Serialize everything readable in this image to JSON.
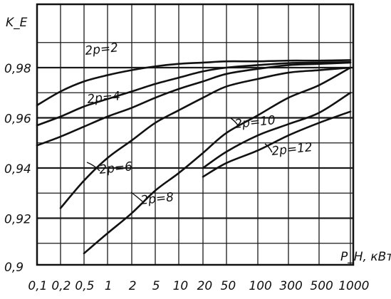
{
  "chart_data": {
    "type": "line",
    "ylabel": "K_E",
    "xlabel": "P_H, кВт",
    "ylim": [
      0.9,
      0.99
    ],
    "y_ticks": [
      "0,9",
      "0,92",
      "0,94",
      "0,96",
      "0,98"
    ],
    "y_tick_values": [
      0.9,
      0.92,
      0.94,
      0.96,
      0.98
    ],
    "x_ticks": [
      "0,1",
      "0,2",
      "0,5",
      "1",
      "2",
      "5",
      "10",
      "20",
      "50",
      "100",
      "300",
      "500",
      "1000"
    ],
    "grid": true,
    "series": [
      {
        "name": "2p=2",
        "x": [
          "0,1",
          "0,2",
          "0,5",
          "1",
          "2",
          "5",
          "10",
          "20",
          "50",
          "100",
          "300",
          "500",
          "1000"
        ],
        "values": [
          0.965,
          0.9705,
          0.9745,
          0.977,
          0.979,
          0.9805,
          0.9815,
          0.982,
          0.9825,
          0.9825,
          0.9828,
          0.9828,
          0.983
        ]
      },
      {
        "name": "2p=4",
        "x": [
          "0,1",
          "0,2",
          "0,5",
          "1",
          "2",
          "5",
          "10",
          "20",
          "50",
          "100",
          "300",
          "500",
          "1000"
        ],
        "values": [
          0.957,
          0.9605,
          0.9645,
          0.9675,
          0.9705,
          0.9735,
          0.976,
          0.9785,
          0.98,
          0.981,
          0.9818,
          0.982,
          0.9822
        ]
      },
      {
        "name": "2p=6",
        "x": [
          "0,1",
          "0,2",
          "0,5",
          "1",
          "2",
          "5",
          "10",
          "20",
          "50",
          "100",
          "300",
          "500",
          "1000"
        ],
        "values": [
          0.949,
          0.9525,
          0.9565,
          0.9605,
          0.964,
          0.968,
          0.9715,
          0.9745,
          0.9775,
          0.9795,
          0.981,
          0.9815,
          0.982
        ]
      },
      {
        "name": "2p=8",
        "x": [
          "0,2",
          "0,5",
          "1",
          "2",
          "5",
          "10",
          "20",
          "50",
          "100",
          "300",
          "500",
          "1000"
        ],
        "values": [
          0.924,
          0.935,
          0.944,
          0.951,
          0.958,
          0.963,
          0.968,
          0.9725,
          0.9755,
          0.978,
          0.979,
          0.98
        ]
      },
      {
        "name": "2p=10",
        "x": [
          "0,5",
          "1",
          "2",
          "5",
          "10",
          "20",
          "50",
          "100",
          "300",
          "500",
          "1000"
        ],
        "values": [
          0.906,
          0.914,
          0.922,
          0.931,
          0.938,
          0.946,
          0.954,
          0.961,
          0.968,
          0.973,
          0.98
        ]
      },
      {
        "name": "2p=12",
        "x": [
          "20",
          "50",
          "100",
          "300",
          "500",
          "1000"
        ],
        "values": [
          0.94,
          0.9465,
          0.953,
          0.9575,
          0.962,
          0.97
        ]
      },
      {
        "name": "2p=12",
        "x": [
          "20",
          "50",
          "100",
          "300",
          "500",
          "1000"
        ],
        "values": [
          0.9365,
          0.942,
          0.947,
          0.953,
          0.958,
          0.9625
        ]
      }
    ],
    "curve_labels": [
      "2p=2",
      "2p=4",
      "2p=6",
      "2p=8",
      "2p=10",
      "2p=12"
    ]
  }
}
